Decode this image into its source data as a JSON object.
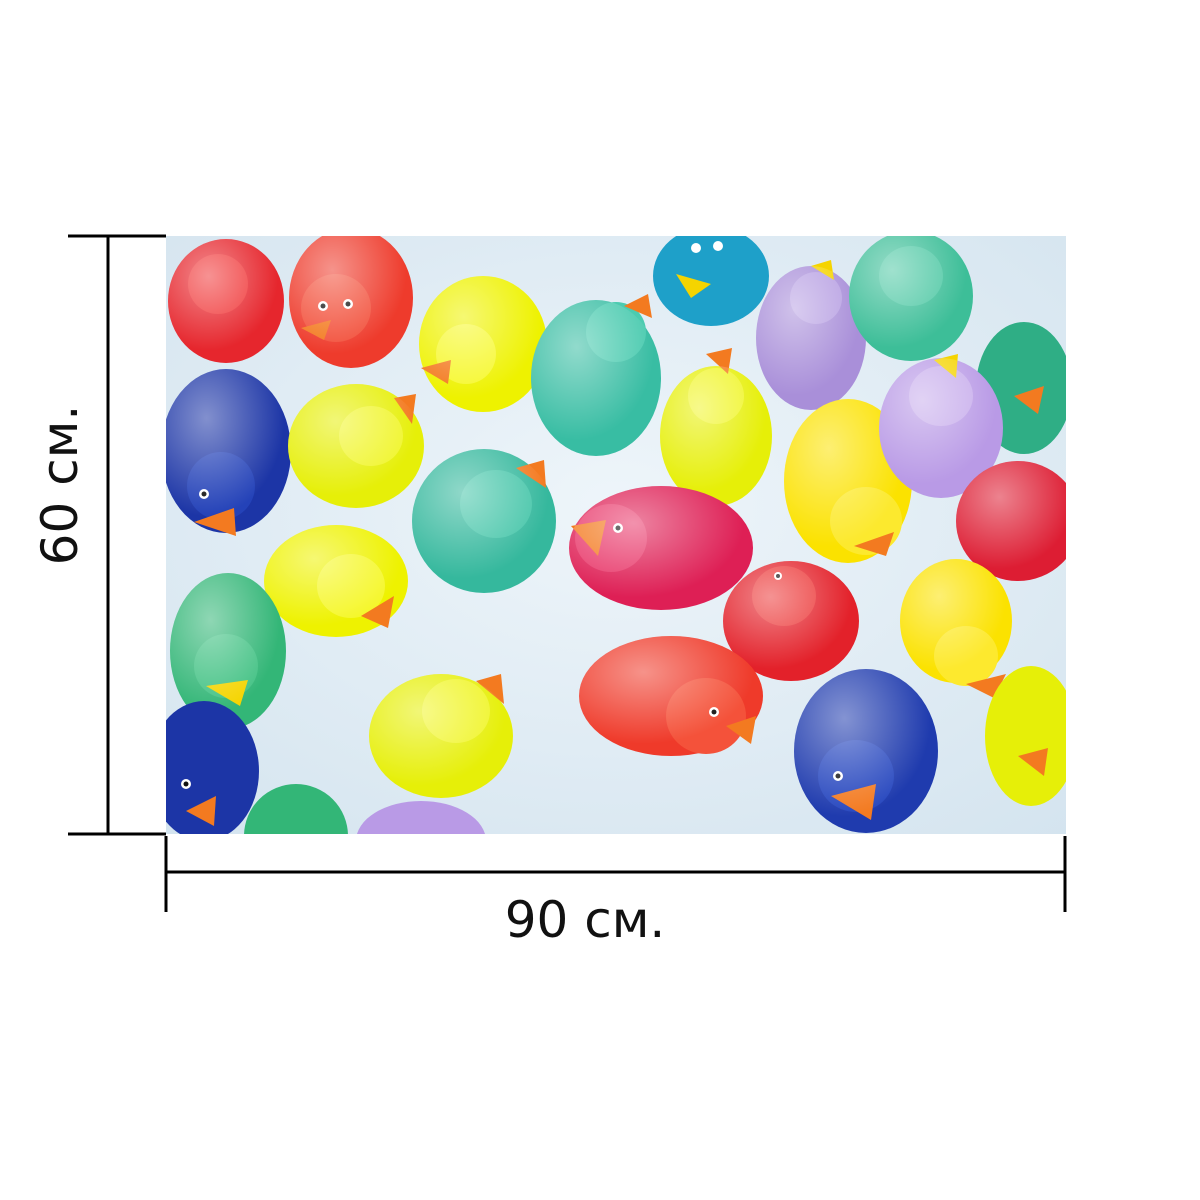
{
  "dimensions": {
    "height_label": "60 см.",
    "width_label": "90 см."
  },
  "photo": {
    "subject": "rubber-ducks-floating-in-water",
    "water_color": "#dde9f1",
    "duck_colors": [
      "#e6262d",
      "#f5e400",
      "#2fb59e",
      "#1c35a6",
      "#a98fd9",
      "#f2e000",
      "#dd1d48",
      "#2faf6b",
      "#1ea0c9"
    ],
    "beak_color": "#f37a20"
  }
}
